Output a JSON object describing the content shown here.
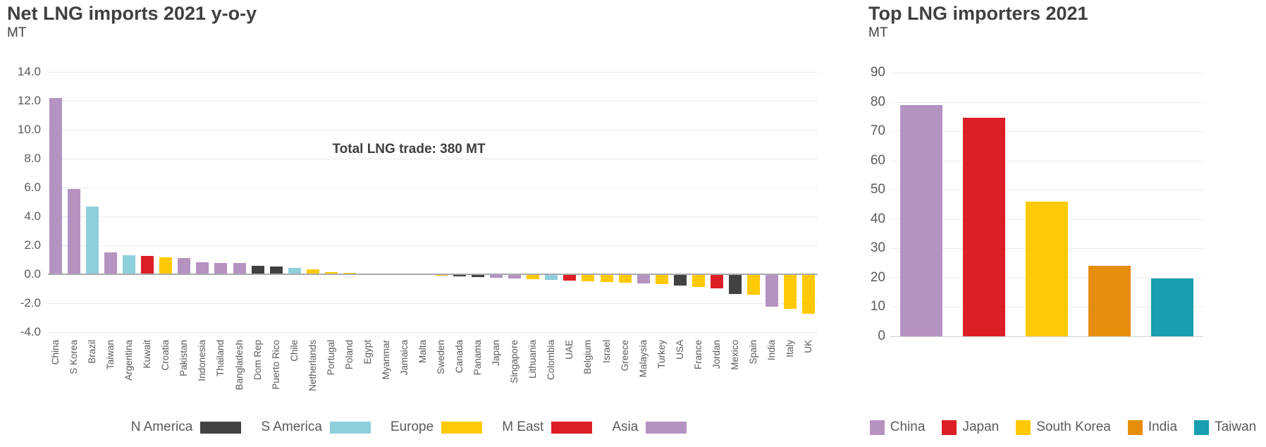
{
  "chart_data": [
    {
      "id": "net-lng-imports-yoy",
      "type": "bar",
      "title": "Net LNG imports 2021 y-o-y",
      "ylabel": "MT",
      "annotation": "Total LNG trade: 380 MT",
      "ylim": [
        -4.0,
        14.0
      ],
      "ytick_step": 2,
      "ytick_labels": [
        "14.0",
        "12.0",
        "10.0",
        "8.0",
        "6.0",
        "4.0",
        "2.0",
        "0.0",
        "-2.0",
        "-4.0"
      ],
      "grid": true,
      "legend_position": "bottom",
      "legend": [
        {
          "label": "N America",
          "color": "#414042"
        },
        {
          "label": "S America",
          "color": "#8ecfdc"
        },
        {
          "label": "Europe",
          "color": "#ffc905"
        },
        {
          "label": "M East",
          "color": "#dc1f26"
        },
        {
          "label": "Asia",
          "color": "#b593c1"
        }
      ],
      "bars": [
        {
          "category": "China",
          "value": 12.2,
          "group": "Asia",
          "color": "#b593c1"
        },
        {
          "category": "S Korea",
          "value": 5.9,
          "group": "Asia",
          "color": "#b593c1"
        },
        {
          "category": "Brazil",
          "value": 4.7,
          "group": "S America",
          "color": "#8ecfdc"
        },
        {
          "category": "Taiwan",
          "value": 1.5,
          "group": "Asia",
          "color": "#b593c1"
        },
        {
          "category": "Argentina",
          "value": 1.3,
          "group": "S America",
          "color": "#8ecfdc"
        },
        {
          "category": "Kuwait",
          "value": 1.25,
          "group": "M East",
          "color": "#dc1f26"
        },
        {
          "category": "Croatia",
          "value": 1.15,
          "group": "Europe",
          "color": "#ffc905"
        },
        {
          "category": "Pakistan",
          "value": 1.1,
          "group": "Asia",
          "color": "#b593c1"
        },
        {
          "category": "Indonesia",
          "value": 0.85,
          "group": "Asia",
          "color": "#b593c1"
        },
        {
          "category": "Thailand",
          "value": 0.8,
          "group": "Asia",
          "color": "#b593c1"
        },
        {
          "category": "Bangladesh",
          "value": 0.8,
          "group": "Asia",
          "color": "#b593c1"
        },
        {
          "category": "Dom Rep",
          "value": 0.6,
          "group": "N America",
          "color": "#414042"
        },
        {
          "category": "Puerto Rico",
          "value": 0.55,
          "group": "N America",
          "color": "#414042"
        },
        {
          "category": "Chile",
          "value": 0.45,
          "group": "S America",
          "color": "#8ecfdc"
        },
        {
          "category": "Netherlands",
          "value": 0.35,
          "group": "Europe",
          "color": "#ffc905"
        },
        {
          "category": "Portugal",
          "value": 0.15,
          "group": "Europe",
          "color": "#ffc905"
        },
        {
          "category": "Poland",
          "value": 0.1,
          "group": "Europe",
          "color": "#ffc905"
        },
        {
          "category": "Egypt",
          "value": 0.05,
          "group": "Europe",
          "color": "#ffc905"
        },
        {
          "category": "Myanmar",
          "value": 0.05,
          "group": "Asia",
          "color": "#b593c1"
        },
        {
          "category": "Jamaica",
          "value": 0.02,
          "group": "N America",
          "color": "#414042"
        },
        {
          "category": "Malta",
          "value": 0.0,
          "group": "Europe",
          "color": "#ffc905"
        },
        {
          "category": "Sweden",
          "value": -0.05,
          "group": "Europe",
          "color": "#ffc905"
        },
        {
          "category": "Canada",
          "value": -0.1,
          "group": "N America",
          "color": "#414042"
        },
        {
          "category": "Panama",
          "value": -0.15,
          "group": "N America",
          "color": "#414042"
        },
        {
          "category": "Japan",
          "value": -0.2,
          "group": "Asia",
          "color": "#b593c1"
        },
        {
          "category": "Singapore",
          "value": -0.25,
          "group": "Asia",
          "color": "#b593c1"
        },
        {
          "category": "Lithuania",
          "value": -0.3,
          "group": "Europe",
          "color": "#ffc905"
        },
        {
          "category": "Colombia",
          "value": -0.35,
          "group": "S America",
          "color": "#8ecfdc"
        },
        {
          "category": "UAE",
          "value": -0.4,
          "group": "M East",
          "color": "#dc1f26"
        },
        {
          "category": "Belgium",
          "value": -0.45,
          "group": "Europe",
          "color": "#ffc905"
        },
        {
          "category": "Israel",
          "value": -0.5,
          "group": "Europe",
          "color": "#ffc905"
        },
        {
          "category": "Greece",
          "value": -0.55,
          "group": "Europe",
          "color": "#ffc905"
        },
        {
          "category": "Malaysia",
          "value": -0.6,
          "group": "Asia",
          "color": "#b593c1"
        },
        {
          "category": "Turkey",
          "value": -0.65,
          "group": "Europe",
          "color": "#ffc905"
        },
        {
          "category": "USA",
          "value": -0.75,
          "group": "N America",
          "color": "#414042"
        },
        {
          "category": "France",
          "value": -0.85,
          "group": "Europe",
          "color": "#ffc905"
        },
        {
          "category": "Jordan",
          "value": -0.95,
          "group": "M East",
          "color": "#dc1f26"
        },
        {
          "category": "Mexico",
          "value": -1.3,
          "group": "N America",
          "color": "#414042"
        },
        {
          "category": "Spain",
          "value": -1.35,
          "group": "Europe",
          "color": "#ffc905"
        },
        {
          "category": "India",
          "value": -2.2,
          "group": "Asia",
          "color": "#b593c1"
        },
        {
          "category": "Italy",
          "value": -2.35,
          "group": "Europe",
          "color": "#ffc905"
        },
        {
          "category": "UK",
          "value": -2.7,
          "group": "Europe",
          "color": "#ffc905"
        }
      ]
    },
    {
      "id": "top-lng-importers",
      "type": "bar",
      "title": "Top LNG importers 2021",
      "ylabel": "MT",
      "ylim": [
        0,
        90
      ],
      "ytick_step": 10,
      "ytick_labels": [
        "90",
        "80",
        "70",
        "60",
        "50",
        "40",
        "30",
        "20",
        "10",
        "0"
      ],
      "grid": true,
      "legend_position": "bottom",
      "legend": [
        {
          "label": "China",
          "color": "#b593c1"
        },
        {
          "label": "Japan",
          "color": "#dc1f26"
        },
        {
          "label": "South Korea",
          "color": "#ffc905"
        },
        {
          "label": "India",
          "color": "#e78d0e"
        },
        {
          "label": "Taiwan",
          "color": "#189eae"
        }
      ],
      "bars": [
        {
          "category": "China",
          "value": 79,
          "color": "#b593c1"
        },
        {
          "category": "Japan",
          "value": 74.5,
          "color": "#dc1f26"
        },
        {
          "category": "South Korea",
          "value": 46,
          "color": "#ffc905"
        },
        {
          "category": "India",
          "value": 24,
          "color": "#e78d0e"
        },
        {
          "category": "Taiwan",
          "value": 19.8,
          "color": "#189eae"
        }
      ]
    }
  ]
}
